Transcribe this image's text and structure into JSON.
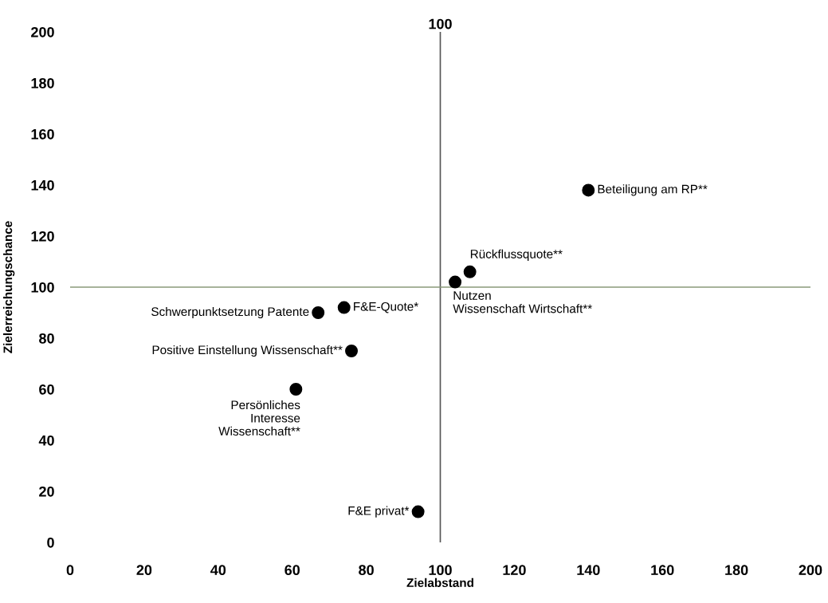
{
  "chart_data": {
    "type": "scatter",
    "xlabel": "Zielabstand",
    "ylabel": "Zielerreichungschance",
    "xlim": [
      0,
      200
    ],
    "ylim": [
      0,
      200
    ],
    "xticks": [
      0,
      20,
      40,
      60,
      80,
      100,
      120,
      140,
      160,
      180,
      200
    ],
    "yticks": [
      0,
      20,
      40,
      60,
      80,
      100,
      120,
      140,
      160,
      180,
      200
    ],
    "ref_lines": [
      {
        "axis": "x",
        "value": 100,
        "label": "100",
        "color": "#555555"
      },
      {
        "axis": "y",
        "value": 100,
        "color": "#8a9a7a"
      }
    ],
    "marker": "circle",
    "series": [
      {
        "color": "#000000",
        "x": [
          140,
          108,
          104,
          67,
          74,
          76,
          61,
          94
        ],
        "values": [
          138,
          106,
          102,
          90,
          92,
          75,
          60,
          12
        ]
      }
    ],
    "annotations": [
      {
        "text": "Beteiligung am RP**",
        "x": 140,
        "y": 138
      },
      {
        "text": "Rückflussquote**",
        "x": 108,
        "y": 106
      },
      {
        "text": "Nutzen\nWissenschaft Wirtschaft**",
        "x": 104,
        "y": 102
      },
      {
        "text": "Schwerpunktsetzung Patente",
        "x": 67,
        "y": 90
      },
      {
        "text": "F&E-Quote*",
        "x": 74,
        "y": 92
      },
      {
        "text": "Positive Einstellung Wissenschaft**",
        "x": 76,
        "y": 75
      },
      {
        "text": "Persönliches\nInteresse\nWissenschaft**",
        "x": 61,
        "y": 60
      },
      {
        "text": "F&E privat*",
        "x": 94,
        "y": 12
      }
    ]
  }
}
